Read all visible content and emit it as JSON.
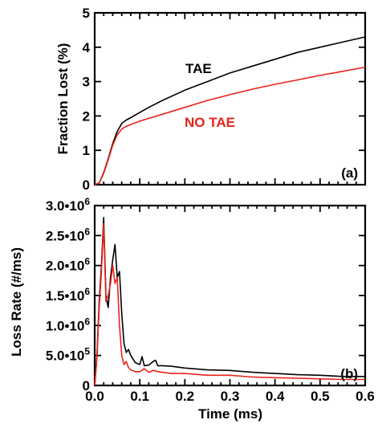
{
  "chart_data": [
    {
      "panel": "(a)",
      "type": "line",
      "xlabel": "",
      "ylabel": "Fraction Lost (%)",
      "xlim": [
        0,
        0.6
      ],
      "ylim": [
        0,
        5
      ],
      "yticks": [
        "0",
        "1",
        "2",
        "3",
        "4",
        "5"
      ],
      "grid": false,
      "series": [
        {
          "name": "TAE",
          "color": "#000000",
          "x": [
            0,
            0.01,
            0.02,
            0.03,
            0.04,
            0.05,
            0.06,
            0.07,
            0.08,
            0.1,
            0.12,
            0.15,
            0.2,
            0.25,
            0.3,
            0.35,
            0.4,
            0.45,
            0.5,
            0.55,
            0.6
          ],
          "y": [
            0,
            0.05,
            0.35,
            0.75,
            1.2,
            1.55,
            1.78,
            1.88,
            1.95,
            2.1,
            2.25,
            2.45,
            2.75,
            3.0,
            3.25,
            3.45,
            3.65,
            3.85,
            4.0,
            4.15,
            4.3
          ]
        },
        {
          "name": "NO TAE",
          "color": "#e8231a",
          "x": [
            0,
            0.01,
            0.02,
            0.03,
            0.04,
            0.05,
            0.06,
            0.07,
            0.08,
            0.1,
            0.12,
            0.15,
            0.2,
            0.25,
            0.3,
            0.35,
            0.4,
            0.45,
            0.5,
            0.55,
            0.6
          ],
          "y": [
            0,
            0.05,
            0.33,
            0.72,
            1.15,
            1.45,
            1.62,
            1.7,
            1.75,
            1.85,
            1.93,
            2.05,
            2.25,
            2.45,
            2.62,
            2.78,
            2.92,
            3.05,
            3.18,
            3.3,
            3.42
          ]
        }
      ]
    },
    {
      "panel": "(b)",
      "type": "line",
      "xlabel": "Time (ms)",
      "ylabel": "Loss Rate (#/ms)",
      "xlim": [
        0,
        0.6
      ],
      "ylim": [
        0,
        3000000
      ],
      "xticks": [
        "0.0",
        "0.1",
        "0.2",
        "0.3",
        "0.4",
        "0.5",
        "0.6"
      ],
      "yticks": [
        {
          "value": 0,
          "mant": "0",
          "exp": ""
        },
        {
          "value": 500000,
          "mant": "5.0•10",
          "exp": "5"
        },
        {
          "value": 1000000,
          "mant": "1.0•10",
          "exp": "6"
        },
        {
          "value": 1500000,
          "mant": "1.5•10",
          "exp": "6"
        },
        {
          "value": 2000000,
          "mant": "2.0•10",
          "exp": "6"
        },
        {
          "value": 2500000,
          "mant": "2.5•10",
          "exp": "6"
        },
        {
          "value": 3000000,
          "mant": "3.0•10",
          "exp": "6"
        }
      ],
      "grid": false,
      "series": [
        {
          "name": "TAE",
          "color": "#000000",
          "x": [
            0,
            0.005,
            0.01,
            0.015,
            0.02,
            0.025,
            0.03,
            0.035,
            0.04,
            0.045,
            0.05,
            0.055,
            0.06,
            0.065,
            0.07,
            0.075,
            0.08,
            0.09,
            0.1,
            0.105,
            0.11,
            0.12,
            0.13,
            0.135,
            0.14,
            0.15,
            0.17,
            0.2,
            0.25,
            0.3,
            0.35,
            0.4,
            0.45,
            0.5,
            0.55,
            0.6
          ],
          "y": [
            0,
            500000,
            1400000,
            2000000,
            2800000,
            1500000,
            1300000,
            1800000,
            2100000,
            2350000,
            1800000,
            1900000,
            1200000,
            700000,
            550000,
            600000,
            500000,
            380000,
            350000,
            480000,
            330000,
            340000,
            400000,
            420000,
            330000,
            330000,
            320000,
            290000,
            260000,
            250000,
            220000,
            200000,
            180000,
            170000,
            150000,
            150000
          ]
        },
        {
          "name": "NO TAE",
          "color": "#e8231a",
          "x": [
            0,
            0.005,
            0.01,
            0.015,
            0.02,
            0.025,
            0.03,
            0.035,
            0.04,
            0.045,
            0.05,
            0.055,
            0.06,
            0.065,
            0.07,
            0.075,
            0.08,
            0.09,
            0.1,
            0.11,
            0.12,
            0.13,
            0.14,
            0.15,
            0.17,
            0.2,
            0.25,
            0.3,
            0.35,
            0.4,
            0.45,
            0.5,
            0.55,
            0.6
          ],
          "y": [
            0,
            450000,
            1300000,
            1900000,
            2700000,
            1400000,
            1500000,
            1700000,
            2000000,
            1700000,
            1800000,
            1000000,
            500000,
            350000,
            400000,
            300000,
            260000,
            230000,
            230000,
            280000,
            220000,
            250000,
            230000,
            220000,
            200000,
            200000,
            170000,
            170000,
            140000,
            130000,
            120000,
            110000,
            100000,
            100000
          ]
        }
      ]
    }
  ],
  "annotations": {
    "tae": "TAE",
    "no_tae": "NO TAE"
  }
}
